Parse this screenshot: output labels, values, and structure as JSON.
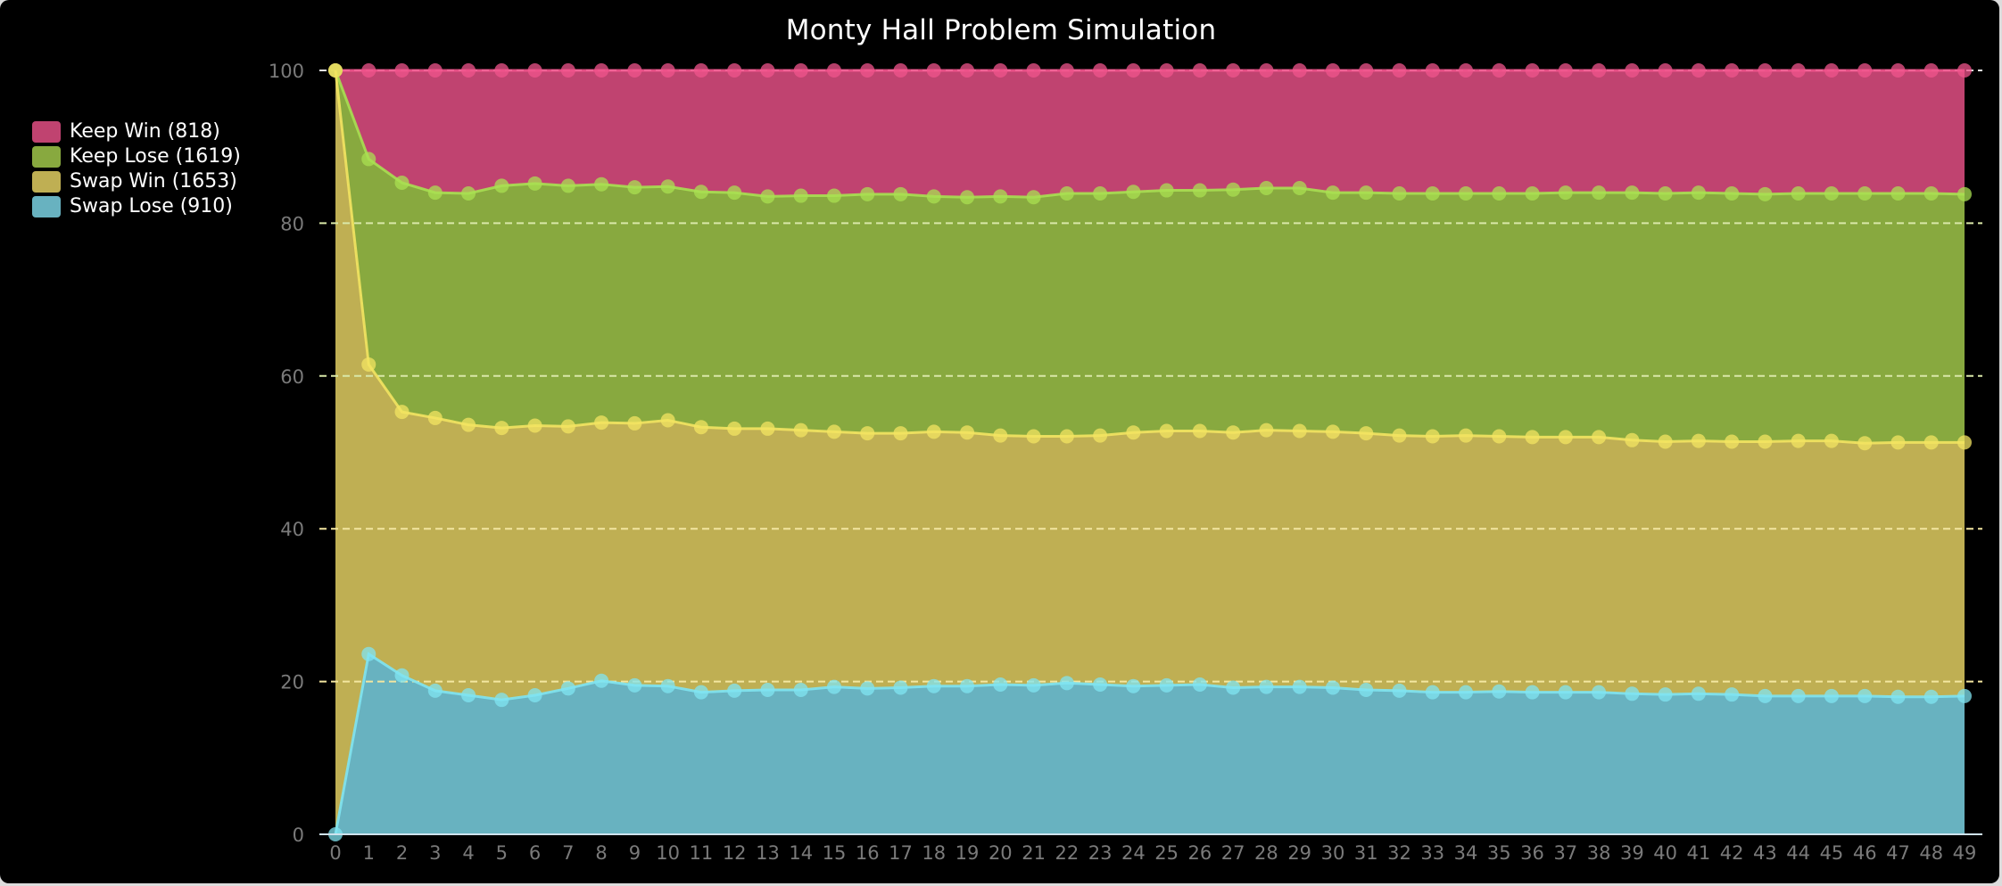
{
  "title": "Monty Hall Problem Simulation",
  "legend": [
    {
      "label": "Keep Win (818)",
      "color": "#c04370"
    },
    {
      "label": "Keep Lose (1619)",
      "color": "#88a93f"
    },
    {
      "label": "Swap Win (1653)",
      "color": "#bfaf53"
    },
    {
      "label": "Swap Lose (910)",
      "color": "#68b2c0"
    }
  ],
  "chart_data": {
    "type": "area",
    "stacked": true,
    "title": "Monty Hall Problem Simulation",
    "xlabel": "",
    "ylabel": "",
    "ylim": [
      0,
      100
    ],
    "yticks": [
      0,
      20,
      40,
      60,
      80,
      100
    ],
    "grid": true,
    "legend_position": "left",
    "x": [
      0,
      1,
      2,
      3,
      4,
      5,
      6,
      7,
      8,
      9,
      10,
      11,
      12,
      13,
      14,
      15,
      16,
      17,
      18,
      19,
      20,
      21,
      22,
      23,
      24,
      25,
      26,
      27,
      28,
      29,
      30,
      31,
      32,
      33,
      34,
      35,
      36,
      37,
      38,
      39,
      40,
      41,
      42,
      43,
      44,
      45,
      46,
      47,
      48,
      49
    ],
    "series_cumulative_top": [
      {
        "name": "Keep Win (818)",
        "fill": "#c04370",
        "line": "#f0548c",
        "values": [
          100,
          100,
          100,
          100,
          100,
          100,
          100,
          100,
          100,
          100,
          100,
          100,
          100,
          100,
          100,
          100,
          100,
          100,
          100,
          100,
          100,
          100,
          100,
          100,
          100,
          100,
          100,
          100,
          100,
          100,
          100,
          100,
          100,
          100,
          100,
          100,
          100,
          100,
          100,
          100,
          100,
          100,
          100,
          100,
          100,
          100,
          100,
          100,
          100,
          100
        ]
      },
      {
        "name": "Keep Lose (1619)",
        "fill": "#88a93f",
        "line": "#a9e052",
        "values": [
          100,
          88.4,
          85.3,
          84.0,
          83.9,
          84.9,
          85.2,
          84.9,
          85.1,
          84.7,
          84.8,
          84.1,
          84.0,
          83.5,
          83.6,
          83.6,
          83.8,
          83.8,
          83.5,
          83.4,
          83.5,
          83.4,
          83.9,
          83.9,
          84.1,
          84.3,
          84.3,
          84.4,
          84.6,
          84.6,
          84.0,
          84.0,
          83.9,
          83.9,
          83.9,
          83.9,
          83.9,
          84.0,
          84.0,
          84.0,
          83.9,
          84.0,
          83.9,
          83.8,
          83.9,
          83.9,
          83.9,
          83.9,
          83.9,
          83.8
        ]
      },
      {
        "name": "Swap Win (1653)",
        "fill": "#bfaf53",
        "line": "#f3e462",
        "values": [
          100,
          61.5,
          55.3,
          54.5,
          53.6,
          53.2,
          53.5,
          53.4,
          53.9,
          53.8,
          54.2,
          53.3,
          53.1,
          53.1,
          52.9,
          52.7,
          52.5,
          52.5,
          52.7,
          52.6,
          52.2,
          52.1,
          52.1,
          52.2,
          52.6,
          52.8,
          52.8,
          52.6,
          52.9,
          52.8,
          52.7,
          52.5,
          52.2,
          52.1,
          52.2,
          52.1,
          52.0,
          52.0,
          52.0,
          51.6,
          51.4,
          51.5,
          51.4,
          51.4,
          51.5,
          51.5,
          51.2,
          51.3,
          51.3,
          51.3
        ]
      },
      {
        "name": "Swap Lose (910)",
        "fill": "#68b2c0",
        "line": "#80e4f2",
        "values": [
          0,
          23.6,
          20.8,
          18.8,
          18.2,
          17.6,
          18.2,
          19.1,
          20.1,
          19.5,
          19.4,
          18.6,
          18.8,
          18.9,
          18.9,
          19.3,
          19.1,
          19.2,
          19.4,
          19.4,
          19.6,
          19.5,
          19.8,
          19.6,
          19.4,
          19.5,
          19.6,
          19.2,
          19.3,
          19.3,
          19.2,
          18.9,
          18.8,
          18.6,
          18.6,
          18.7,
          18.6,
          18.6,
          18.6,
          18.4,
          18.3,
          18.4,
          18.3,
          18.1,
          18.1,
          18.1,
          18.1,
          18.0,
          18.0,
          18.1
        ]
      }
    ],
    "series": [
      {
        "name": "Keep Win",
        "total": 818
      },
      {
        "name": "Keep Lose",
        "total": 1619
      },
      {
        "name": "Swap Win",
        "total": 1653
      },
      {
        "name": "Swap Lose",
        "total": 910
      }
    ]
  }
}
